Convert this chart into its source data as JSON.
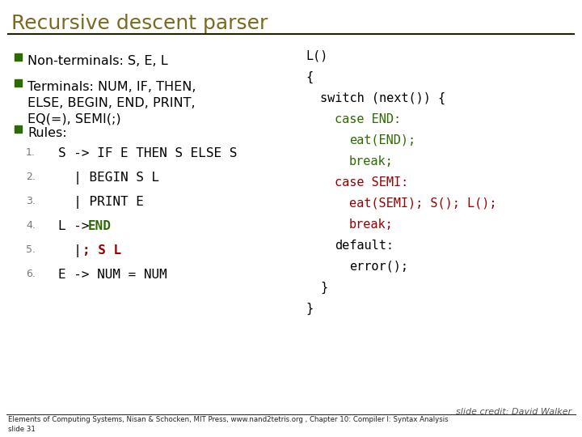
{
  "title": "Recursive descent parser",
  "background_color": "#ffffff",
  "title_color": "#7a6a20",
  "title_fontsize": 18,
  "sq_color": "#2d6a00",
  "text_color": "#000000",
  "green_color": "#2d6a00",
  "red_color": "#990000",
  "bullet1": "Non-terminals: S, E, L",
  "bullet2_lines": [
    "Terminals: NUM, IF, THEN,",
    "ELSE, BEGIN, END, PRINT,",
    "EQ(=), SEMI(;)"
  ],
  "bullet3": "Rules:",
  "rules": [
    {
      "num": "1.",
      "black": "S -> IF E THEN S ELSE S",
      "colored": "",
      "color": ""
    },
    {
      "num": "2.",
      "black": "  | BEGIN S L",
      "colored": "",
      "color": ""
    },
    {
      "num": "3.",
      "black": "  | PRINT E",
      "colored": "",
      "color": ""
    },
    {
      "num": "4.",
      "black": "L -> ",
      "colored": "END",
      "color": "green"
    },
    {
      "num": "5.",
      "black": "  | ",
      "colored": "; S L",
      "color": "red"
    },
    {
      "num": "6.",
      "black": "E -> NUM = NUM",
      "colored": "",
      "color": ""
    }
  ],
  "right_lines": [
    {
      "text": "L()",
      "color": "black",
      "indent": 0
    },
    {
      "text": "{",
      "color": "black",
      "indent": 0
    },
    {
      "text": "switch (next()) {",
      "color": "black",
      "indent": 1
    },
    {
      "text": "case END:",
      "color": "green",
      "indent": 2
    },
    {
      "text": "eat(END);",
      "color": "green",
      "indent": 3
    },
    {
      "text": "break;",
      "color": "green",
      "indent": 3
    },
    {
      "text": "case SEMI:",
      "color": "red",
      "indent": 2
    },
    {
      "text": "eat(SEMI); S(); L();",
      "color": "red",
      "indent": 3
    },
    {
      "text": "break;",
      "color": "red",
      "indent": 3
    },
    {
      "text": "default:",
      "color": "black",
      "indent": 2
    },
    {
      "text": "error();",
      "color": "black",
      "indent": 3
    },
    {
      "text": "}",
      "color": "black",
      "indent": 1
    },
    {
      "text": "}",
      "color": "black",
      "indent": 0
    }
  ],
  "footer_credit": "slide credit: David Walker",
  "footer_main": "Elements of Computing Systems, Nisan & Schocken, MIT Press, www.nand2tetris.org , Chapter 10: Compiler I: Syntax Analysis",
  "footer_slide": "slide 31"
}
